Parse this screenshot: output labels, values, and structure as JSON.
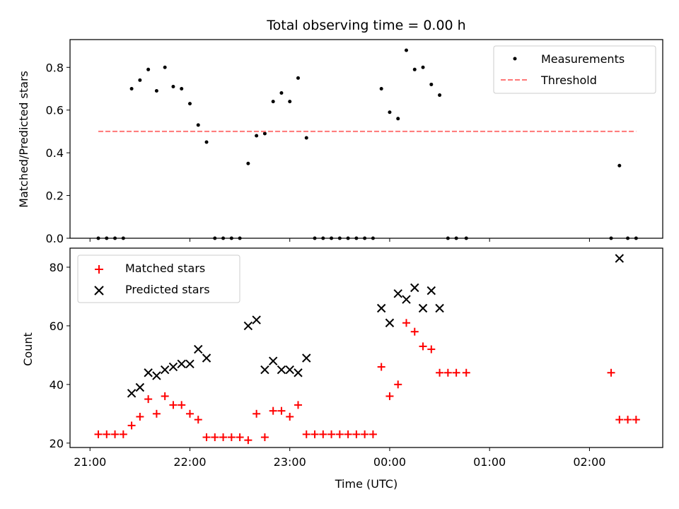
{
  "chart_data": [
    {
      "type": "scatter",
      "title": "Total observing time = 0.00 h",
      "xlabel": "",
      "ylabel": "Matched/Predicted stars",
      "ylim": [
        0,
        0.93
      ],
      "yticks": [
        "0.0",
        "0.2",
        "0.4",
        "0.6",
        "0.8"
      ],
      "xlim": [
        "20:48",
        "02:44"
      ],
      "legend_position": "top-right",
      "series": [
        {
          "name": "Measurements",
          "marker": "dot",
          "color": "#000000",
          "points": [
            [
              "21:05",
              0.0
            ],
            [
              "21:10",
              0.0
            ],
            [
              "21:15",
              0.0
            ],
            [
              "21:20",
              0.0
            ],
            [
              "21:25",
              0.7
            ],
            [
              "21:30",
              0.74
            ],
            [
              "21:35",
              0.79
            ],
            [
              "21:40",
              0.69
            ],
            [
              "21:45",
              0.8
            ],
            [
              "21:50",
              0.71
            ],
            [
              "21:55",
              0.7
            ],
            [
              "22:00",
              0.63
            ],
            [
              "22:05",
              0.53
            ],
            [
              "22:10",
              0.45
            ],
            [
              "22:15",
              0.0
            ],
            [
              "22:20",
              0.0
            ],
            [
              "22:25",
              0.0
            ],
            [
              "22:30",
              0.0
            ],
            [
              "22:35",
              0.35
            ],
            [
              "22:40",
              0.48
            ],
            [
              "22:45",
              0.49
            ],
            [
              "22:50",
              0.64
            ],
            [
              "22:55",
              0.68
            ],
            [
              "23:00",
              0.64
            ],
            [
              "23:05",
              0.75
            ],
            [
              "23:10",
              0.47
            ],
            [
              "23:15",
              0.0
            ],
            [
              "23:20",
              0.0
            ],
            [
              "23:25",
              0.0
            ],
            [
              "23:30",
              0.0
            ],
            [
              "23:35",
              0.0
            ],
            [
              "23:40",
              0.0
            ],
            [
              "23:45",
              0.0
            ],
            [
              "23:50",
              0.0
            ],
            [
              "23:55",
              0.7
            ],
            [
              "00:00",
              0.59
            ],
            [
              "00:05",
              0.56
            ],
            [
              "00:10",
              0.88
            ],
            [
              "00:15",
              0.79
            ],
            [
              "00:20",
              0.8
            ],
            [
              "00:25",
              0.72
            ],
            [
              "00:30",
              0.67
            ],
            [
              "00:35",
              0.0
            ],
            [
              "00:40",
              0.0
            ],
            [
              "00:46",
              0.0
            ],
            [
              "02:13",
              0.0
            ],
            [
              "02:18",
              0.34
            ],
            [
              "02:23",
              0.0
            ],
            [
              "02:28",
              0.0
            ]
          ]
        },
        {
          "name": "Threshold",
          "line_style": "dashed",
          "color": "#ff7777",
          "points": [
            [
              "21:05",
              0.5
            ],
            [
              "02:28",
              0.5
            ]
          ]
        }
      ]
    },
    {
      "type": "scatter",
      "xlabel": "Time (UTC)",
      "ylabel": "Count",
      "ylim": [
        18.5,
        86.5
      ],
      "yticks": [
        "20",
        "40",
        "60",
        "80"
      ],
      "xlim": [
        "20:48",
        "02:44"
      ],
      "xticks": [
        "21:00",
        "22:00",
        "23:00",
        "00:00",
        "01:00",
        "02:00"
      ],
      "legend_position": "top-left",
      "series": [
        {
          "name": "Matched stars",
          "marker": "plus",
          "color": "#ff0000",
          "points": [
            [
              "21:05",
              23
            ],
            [
              "21:10",
              23
            ],
            [
              "21:15",
              23
            ],
            [
              "21:20",
              23
            ],
            [
              "21:25",
              26
            ],
            [
              "21:30",
              29
            ],
            [
              "21:35",
              35
            ],
            [
              "21:40",
              30
            ],
            [
              "21:45",
              36
            ],
            [
              "21:50",
              33
            ],
            [
              "21:55",
              33
            ],
            [
              "22:00",
              30
            ],
            [
              "22:05",
              28
            ],
            [
              "22:10",
              22
            ],
            [
              "22:15",
              22
            ],
            [
              "22:20",
              22
            ],
            [
              "22:25",
              22
            ],
            [
              "22:30",
              22
            ],
            [
              "22:35",
              21
            ],
            [
              "22:40",
              30
            ],
            [
              "22:45",
              22
            ],
            [
              "22:50",
              31
            ],
            [
              "22:55",
              31
            ],
            [
              "23:00",
              29
            ],
            [
              "23:05",
              33
            ],
            [
              "23:10",
              23
            ],
            [
              "23:15",
              23
            ],
            [
              "23:20",
              23
            ],
            [
              "23:25",
              23
            ],
            [
              "23:30",
              23
            ],
            [
              "23:35",
              23
            ],
            [
              "23:40",
              23
            ],
            [
              "23:45",
              23
            ],
            [
              "23:50",
              23
            ],
            [
              "23:55",
              46
            ],
            [
              "00:00",
              36
            ],
            [
              "00:05",
              40
            ],
            [
              "00:10",
              61
            ],
            [
              "00:15",
              58
            ],
            [
              "00:20",
              53
            ],
            [
              "00:25",
              52
            ],
            [
              "00:30",
              44
            ],
            [
              "00:35",
              44
            ],
            [
              "00:40",
              44
            ],
            [
              "00:46",
              44
            ],
            [
              "02:13",
              44
            ],
            [
              "02:18",
              28
            ],
            [
              "02:23",
              28
            ],
            [
              "02:28",
              28
            ]
          ]
        },
        {
          "name": "Predicted stars",
          "marker": "x",
          "color": "#000000",
          "points": [
            [
              "21:25",
              37
            ],
            [
              "21:30",
              39
            ],
            [
              "21:35",
              44
            ],
            [
              "21:40",
              43
            ],
            [
              "21:45",
              45
            ],
            [
              "21:50",
              46
            ],
            [
              "21:55",
              47
            ],
            [
              "22:00",
              47
            ],
            [
              "22:05",
              52
            ],
            [
              "22:10",
              49
            ],
            [
              "22:35",
              60
            ],
            [
              "22:40",
              62
            ],
            [
              "22:45",
              45
            ],
            [
              "22:50",
              48
            ],
            [
              "22:55",
              45
            ],
            [
              "23:00",
              45
            ],
            [
              "23:05",
              44
            ],
            [
              "23:10",
              49
            ],
            [
              "23:55",
              66
            ],
            [
              "00:00",
              61
            ],
            [
              "00:05",
              71
            ],
            [
              "00:10",
              69
            ],
            [
              "00:15",
              73
            ],
            [
              "00:20",
              66
            ],
            [
              "00:25",
              72
            ],
            [
              "00:30",
              66
            ],
            [
              "02:18",
              83
            ]
          ]
        }
      ]
    }
  ]
}
